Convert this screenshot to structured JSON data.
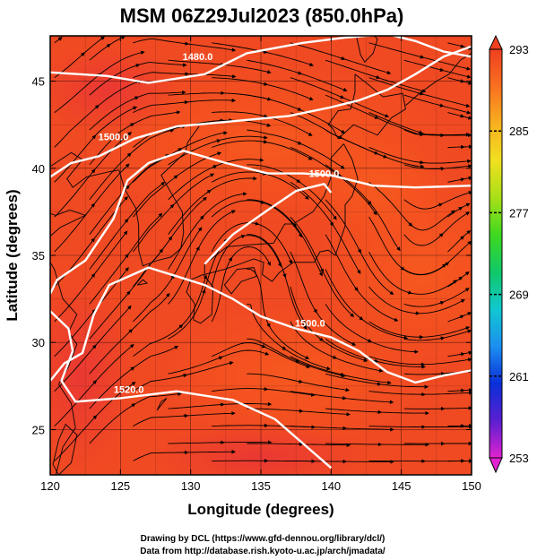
{
  "title": "MSM 06Z29Jul2023 (850.0hPa)",
  "xlabel": "Longitude (degrees)",
  "ylabel": "Latitude  (degrees)",
  "x_ticks": [
    120,
    125,
    130,
    135,
    140,
    145,
    150
  ],
  "y_ticks": [
    25,
    30,
    35,
    40,
    45
  ],
  "colorbar": {
    "ticks": [
      293,
      285,
      277,
      269,
      261,
      253
    ],
    "min": 253,
    "max": 293,
    "colors": [
      "#e022d0",
      "#5a1fd0",
      "#0a2fd8",
      "#1c8ff0",
      "#10c8d0",
      "#10c868",
      "#3ed820",
      "#a8e018",
      "#f0e020",
      "#f8b020",
      "#f87020",
      "#f04020"
    ]
  },
  "contour_labels": [
    "1480.0",
    "1500.0",
    "1500.0",
    "1500.0",
    "1520.0"
  ],
  "footer": {
    "line1": "Drawing by DCL (https://www.gfd-dennou.org/library/dcl/)",
    "line2": "Data from http://database.rish.kyoto-u.ac.jp/arch/jmadata/"
  },
  "chart_data": {
    "type": "heatmap",
    "title": "MSM 06Z29Jul2023 (850.0hPa)",
    "xlabel": "Longitude (degrees)",
    "ylabel": "Latitude  (degrees)",
    "xlim": [
      120,
      150
    ],
    "ylim": [
      22.4,
      47.6
    ],
    "color_range": [
      253,
      293
    ],
    "contours": [
      {
        "label": "1480.0",
        "points": [
          [
            120,
            45.5
          ],
          [
            124,
            45.3
          ],
          [
            127,
            44.9
          ],
          [
            131,
            45.4
          ],
          [
            134,
            46.6
          ],
          [
            138,
            47.2
          ],
          [
            141,
            47.5
          ],
          [
            144,
            47.7
          ],
          [
            146,
            47.3
          ],
          [
            148,
            46.7
          ],
          [
            150,
            46.4
          ]
        ]
      },
      {
        "label": "1500.0",
        "points": [
          [
            120,
            39.5
          ],
          [
            121.5,
            40.3
          ],
          [
            123.5,
            40.7
          ],
          [
            126,
            41.7
          ],
          [
            129,
            42.4
          ],
          [
            133,
            42.7
          ],
          [
            137,
            43.0
          ],
          [
            140,
            43.5
          ],
          [
            142,
            43.9
          ],
          [
            144,
            44.5
          ],
          [
            146,
            45.4
          ],
          [
            148,
            46.4
          ],
          [
            150,
            47.0
          ]
        ]
      },
      {
        "label": "1500.0",
        "points": [
          [
            120,
            32.8
          ],
          [
            120.5,
            33.6
          ],
          [
            122.5,
            34.7
          ],
          [
            124.5,
            37.1
          ],
          [
            125.5,
            39.3
          ],
          [
            127,
            40.3
          ],
          [
            129.5,
            41.0
          ],
          [
            132.5,
            40.3
          ],
          [
            135.5,
            39.7
          ],
          [
            138,
            39.7
          ],
          [
            140,
            39.6
          ],
          [
            143,
            39.0
          ],
          [
            146,
            38.9
          ],
          [
            150,
            39.0
          ]
        ]
      },
      {
        "label": "1500.0",
        "points": [
          [
            131,
            34.5
          ],
          [
            133,
            36.2
          ],
          [
            135.5,
            37.6
          ],
          [
            137.5,
            38.7
          ],
          [
            139.5,
            39.1
          ],
          [
            140,
            38.6
          ]
        ]
      },
      {
        "label": "1500.0",
        "points": [
          [
            120,
            27.8
          ],
          [
            121,
            28.8
          ],
          [
            122.3,
            29.4
          ],
          [
            123.1,
            31.6
          ],
          [
            124.2,
            33.3
          ],
          [
            127,
            34.3
          ],
          [
            129,
            33.8
          ],
          [
            131,
            33.3
          ],
          [
            133,
            32.5
          ],
          [
            135,
            31.5
          ],
          [
            137.5,
            30.8
          ],
          [
            140,
            30.3
          ],
          [
            142,
            29.5
          ],
          [
            144,
            28.3
          ],
          [
            146,
            27.7
          ],
          [
            148,
            28.1
          ],
          [
            150,
            28.4
          ]
        ]
      },
      {
        "label": "1520.0",
        "points": [
          [
            120,
            31.8
          ],
          [
            121.3,
            30.8
          ],
          [
            121.6,
            29.5
          ],
          [
            120.8,
            27.8
          ],
          [
            121.8,
            26.6
          ],
          [
            125,
            26.8
          ],
          [
            129,
            27.2
          ],
          [
            133,
            26.7
          ],
          [
            136,
            25.6
          ],
          [
            138,
            24.2
          ],
          [
            140,
            22.8
          ]
        ]
      }
    ],
    "coastlines": [
      {
        "name": "Korea",
        "points": [
          [
            124.9,
            39.9
          ],
          [
            125.3,
            38.8
          ],
          [
            126.1,
            37.7
          ],
          [
            126.3,
            36.7
          ],
          [
            126.3,
            35.3
          ],
          [
            126.6,
            34.4
          ],
          [
            127.6,
            34.7
          ],
          [
            128.6,
            34.9
          ],
          [
            129.3,
            35.4
          ],
          [
            129.5,
            36.3
          ],
          [
            129.4,
            37.5
          ],
          [
            128.6,
            38.6
          ],
          [
            127.9,
            39.6
          ],
          [
            129.6,
            40.9
          ],
          [
            129.8,
            41.5
          ],
          [
            130.6,
            42.4
          ]
        ]
      },
      {
        "name": "China",
        "points": [
          [
            120,
            40.1
          ],
          [
            121.5,
            40.9
          ],
          [
            122.3,
            40.5
          ],
          [
            121.2,
            39.4
          ],
          [
            121.6,
            38.9
          ],
          [
            122.6,
            39.5
          ],
          [
            124.2,
            39.8
          ],
          [
            124.9,
            39.9
          ]
        ]
      },
      {
        "name": "Shandong",
        "points": [
          [
            120,
            36.1
          ],
          [
            120.7,
            36.6
          ],
          [
            122.5,
            37.3
          ],
          [
            121.4,
            37.6
          ],
          [
            120.4,
            37.3
          ],
          [
            120,
            37.4
          ]
        ]
      },
      {
        "name": "ChinaSouth",
        "points": [
          [
            120.4,
            22.4
          ],
          [
            120.9,
            24
          ],
          [
            121.8,
            25.1
          ],
          [
            121.5,
            26.5
          ],
          [
            120.6,
            27.6
          ],
          [
            121.3,
            28.6
          ],
          [
            121.9,
            29.9
          ],
          [
            121.3,
            30.6
          ],
          [
            121.9,
            31.6
          ],
          [
            120.9,
            32.5
          ],
          [
            120.3,
            34.2
          ],
          [
            120,
            34.6
          ]
        ]
      },
      {
        "name": "Taiwan",
        "points": [
          [
            120.2,
            23
          ],
          [
            120.6,
            22.4
          ],
          [
            121.5,
            23.1
          ],
          [
            121.9,
            24.7
          ],
          [
            121.1,
            25.3
          ],
          [
            120.6,
            24.4
          ],
          [
            120.2,
            23
          ]
        ]
      },
      {
        "name": "Sakhalin",
        "points": [
          [
            141.8,
            47.6
          ],
          [
            142.1,
            46.5
          ],
          [
            142.4,
            46.1
          ],
          [
            143,
            46.6
          ],
          [
            143.3,
            47.4
          ],
          [
            143.1,
            47.6
          ]
        ]
      },
      {
        "name": "Kurils",
        "points": [
          [
            145.3,
            43.6
          ],
          [
            146.3,
            44.3
          ],
          [
            147.5,
            45
          ],
          [
            148.4,
            45.4
          ],
          [
            149.2,
            46.2
          ],
          [
            150,
            46.6
          ]
        ]
      },
      {
        "name": "Hokkaido",
        "points": [
          [
            141.7,
            45.4
          ],
          [
            142.5,
            44.9
          ],
          [
            143.7,
            44.1
          ],
          [
            145.1,
            44.3
          ],
          [
            145.3,
            43.4
          ],
          [
            144.3,
            42.9
          ],
          [
            143.3,
            41.9
          ],
          [
            141.6,
            42.5
          ],
          [
            140.5,
            41.7
          ],
          [
            140.1,
            42.3
          ],
          [
            139.8,
            42.5
          ],
          [
            140.5,
            43.3
          ],
          [
            141.4,
            43.4
          ],
          [
            141.7,
            44.4
          ],
          [
            141.7,
            45.4
          ]
        ]
      },
      {
        "name": "Honshu",
        "points": [
          [
            140.9,
            41.4
          ],
          [
            141.5,
            40.5
          ],
          [
            141.9,
            39.4
          ],
          [
            141.5,
            38.4
          ],
          [
            141,
            37.9
          ],
          [
            141,
            36.7
          ],
          [
            140.6,
            35.7
          ],
          [
            140.3,
            35
          ],
          [
            139.8,
            35.3
          ],
          [
            139.2,
            35.2
          ],
          [
            138.8,
            34.6
          ],
          [
            137.3,
            34.6
          ],
          [
            136.8,
            34.3
          ],
          [
            136.3,
            34.0
          ],
          [
            135.8,
            33.5
          ],
          [
            135.1,
            33.9
          ],
          [
            135.2,
            34.6
          ],
          [
            134.5,
            34.8
          ],
          [
            133.5,
            34.5
          ],
          [
            132.4,
            34.2
          ],
          [
            131.0,
            33.9
          ],
          [
            131.0,
            34.5
          ],
          [
            132.6,
            35.5
          ],
          [
            134.2,
            35.6
          ],
          [
            135.9,
            35.7
          ],
          [
            136.7,
            36.8
          ],
          [
            137.3,
            36.8
          ],
          [
            138.7,
            37.5
          ],
          [
            139.5,
            38.4
          ],
          [
            140.0,
            39.5
          ],
          [
            140.0,
            40.6
          ],
          [
            140.9,
            41.4
          ]
        ]
      },
      {
        "name": "Shikoku",
        "points": [
          [
            132.4,
            33.3
          ],
          [
            132.9,
            32.8
          ],
          [
            133.6,
            33.5
          ],
          [
            134.7,
            33.8
          ],
          [
            134.5,
            34.3
          ],
          [
            133.3,
            34.2
          ],
          [
            132.4,
            33.3
          ]
        ]
      },
      {
        "name": "Kyushu",
        "points": [
          [
            130.0,
            33.6
          ],
          [
            130.9,
            33.9
          ],
          [
            131.6,
            33.2
          ],
          [
            131.5,
            31.6
          ],
          [
            130.7,
            31.1
          ],
          [
            130.2,
            31.3
          ],
          [
            130.3,
            32.2
          ],
          [
            129.7,
            32.9
          ],
          [
            130.0,
            33.6
          ]
        ]
      },
      {
        "name": "Jeju",
        "points": [
          [
            126.2,
            33.3
          ],
          [
            126.9,
            33.4
          ],
          [
            126.6,
            33.6
          ],
          [
            126.2,
            33.3
          ]
        ]
      },
      {
        "name": "Okinawa",
        "points": [
          [
            127.6,
            26.1
          ],
          [
            128.3,
            26.8
          ],
          [
            127.9,
            26.6
          ],
          [
            127.6,
            26.1
          ]
        ]
      }
    ]
  }
}
